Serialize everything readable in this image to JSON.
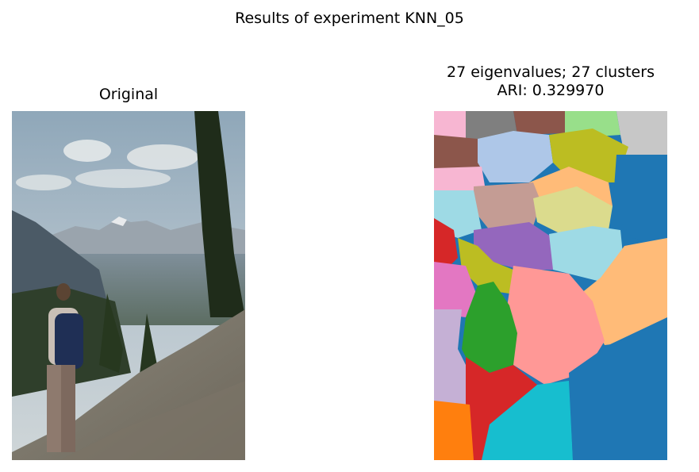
{
  "figure": {
    "title": "Results of experiment KNN_05"
  },
  "chart_data": [
    {
      "type": "image",
      "title": "Original",
      "content": "photograph"
    },
    {
      "type": "heatmap",
      "title_line1": "27 eigenvalues; 27 clusters",
      "title_line2": "ARI: 0.329970",
      "eigenvalues": 27,
      "clusters": 27,
      "ari": 0.32997,
      "colormap": "tab20",
      "palette": [
        "#f7b6d2",
        "#7f7f7f",
        "#8c564b",
        "#98df8a",
        "#c7c7c7",
        "#aec7e8",
        "#bcbd22",
        "#1f77b4",
        "#ffbb78",
        "#c49c94",
        "#9edae5",
        "#dbdb8d",
        "#d62728",
        "#9467bd",
        "#e377c2",
        "#ff9896",
        "#2ca02c",
        "#c5b0d5",
        "#ff7f0e",
        "#17becf"
      ]
    }
  ]
}
